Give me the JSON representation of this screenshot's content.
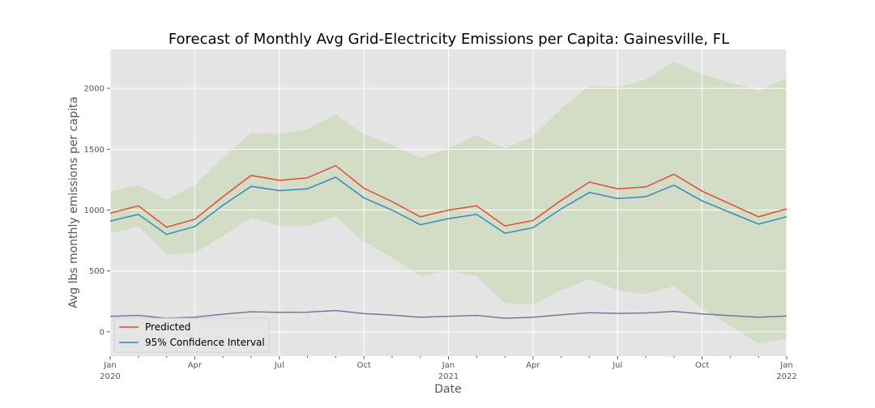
{
  "chart_data": {
    "type": "line",
    "title": "Forecast of Monthly Avg Grid-Electricity Emissions per Capita: Gainesville, FL",
    "xlabel": "Date",
    "ylabel": "Avg lbs monthly emissions per capita",
    "ylim": [
      -200,
      2320
    ],
    "yticks": [
      0,
      500,
      1000,
      1500,
      2000
    ],
    "x_ticks": [
      {
        "i": 0,
        "label": "Jan",
        "sublabel": "2020"
      },
      {
        "i": 3,
        "label": "Apr",
        "sublabel": ""
      },
      {
        "i": 6,
        "label": "Jul",
        "sublabel": ""
      },
      {
        "i": 9,
        "label": "Oct",
        "sublabel": ""
      },
      {
        "i": 12,
        "label": "Jan",
        "sublabel": "2021"
      },
      {
        "i": 15,
        "label": "Apr",
        "sublabel": ""
      },
      {
        "i": 18,
        "label": "Jul",
        "sublabel": ""
      },
      {
        "i": 21,
        "label": "Oct",
        "sublabel": ""
      },
      {
        "i": 24,
        "label": "Jan",
        "sublabel": "2022"
      }
    ],
    "months": [
      "2020-01",
      "2020-02",
      "2020-03",
      "2020-04",
      "2020-05",
      "2020-06",
      "2020-07",
      "2020-08",
      "2020-09",
      "2020-10",
      "2020-11",
      "2020-12",
      "2021-01",
      "2021-02",
      "2021-03",
      "2021-04",
      "2021-05",
      "2021-06",
      "2021-07",
      "2021-08",
      "2021-09",
      "2021-10",
      "2021-11",
      "2021-12",
      "2022-01"
    ],
    "series": [
      {
        "name": "Predicted",
        "color": "#E24A33",
        "values": [
          975,
          1035,
          860,
          925,
          1110,
          1285,
          1245,
          1265,
          1365,
          1180,
          1070,
          945,
          1000,
          1035,
          870,
          915,
          1080,
          1230,
          1175,
          1190,
          1295,
          1155,
          1050,
          945,
          1010
        ]
      },
      {
        "name": "95% Confidence Interval",
        "color": "#348ABD",
        "values": [
          910,
          965,
          800,
          865,
          1040,
          1195,
          1160,
          1175,
          1270,
          1100,
          1000,
          880,
          930,
          965,
          810,
          855,
          1010,
          1145,
          1095,
          1110,
          1205,
          1075,
          980,
          885,
          945
        ]
      },
      {
        "name": "",
        "color": "#777799",
        "values": [
          128,
          135,
          112,
          120,
          145,
          165,
          160,
          162,
          175,
          150,
          137,
          120,
          128,
          135,
          112,
          120,
          140,
          158,
          152,
          155,
          168,
          148,
          133,
          120,
          130
        ]
      }
    ],
    "band": {
      "color": "#8EBA42",
      "lower": [
        810,
        865,
        635,
        645,
        790,
        935,
        870,
        865,
        945,
        740,
        610,
        460,
        500,
        455,
        235,
        225,
        340,
        435,
        340,
        310,
        375,
        190,
        50,
        -95,
        -60
      ],
      "upper": [
        1155,
        1205,
        1085,
        1205,
        1430,
        1635,
        1625,
        1665,
        1785,
        1625,
        1535,
        1430,
        1505,
        1615,
        1505,
        1610,
        1835,
        2020,
        2010,
        2075,
        2220,
        2115,
        2050,
        1980,
        2085
      ]
    },
    "grid": true,
    "legend_position": "lower-left"
  }
}
